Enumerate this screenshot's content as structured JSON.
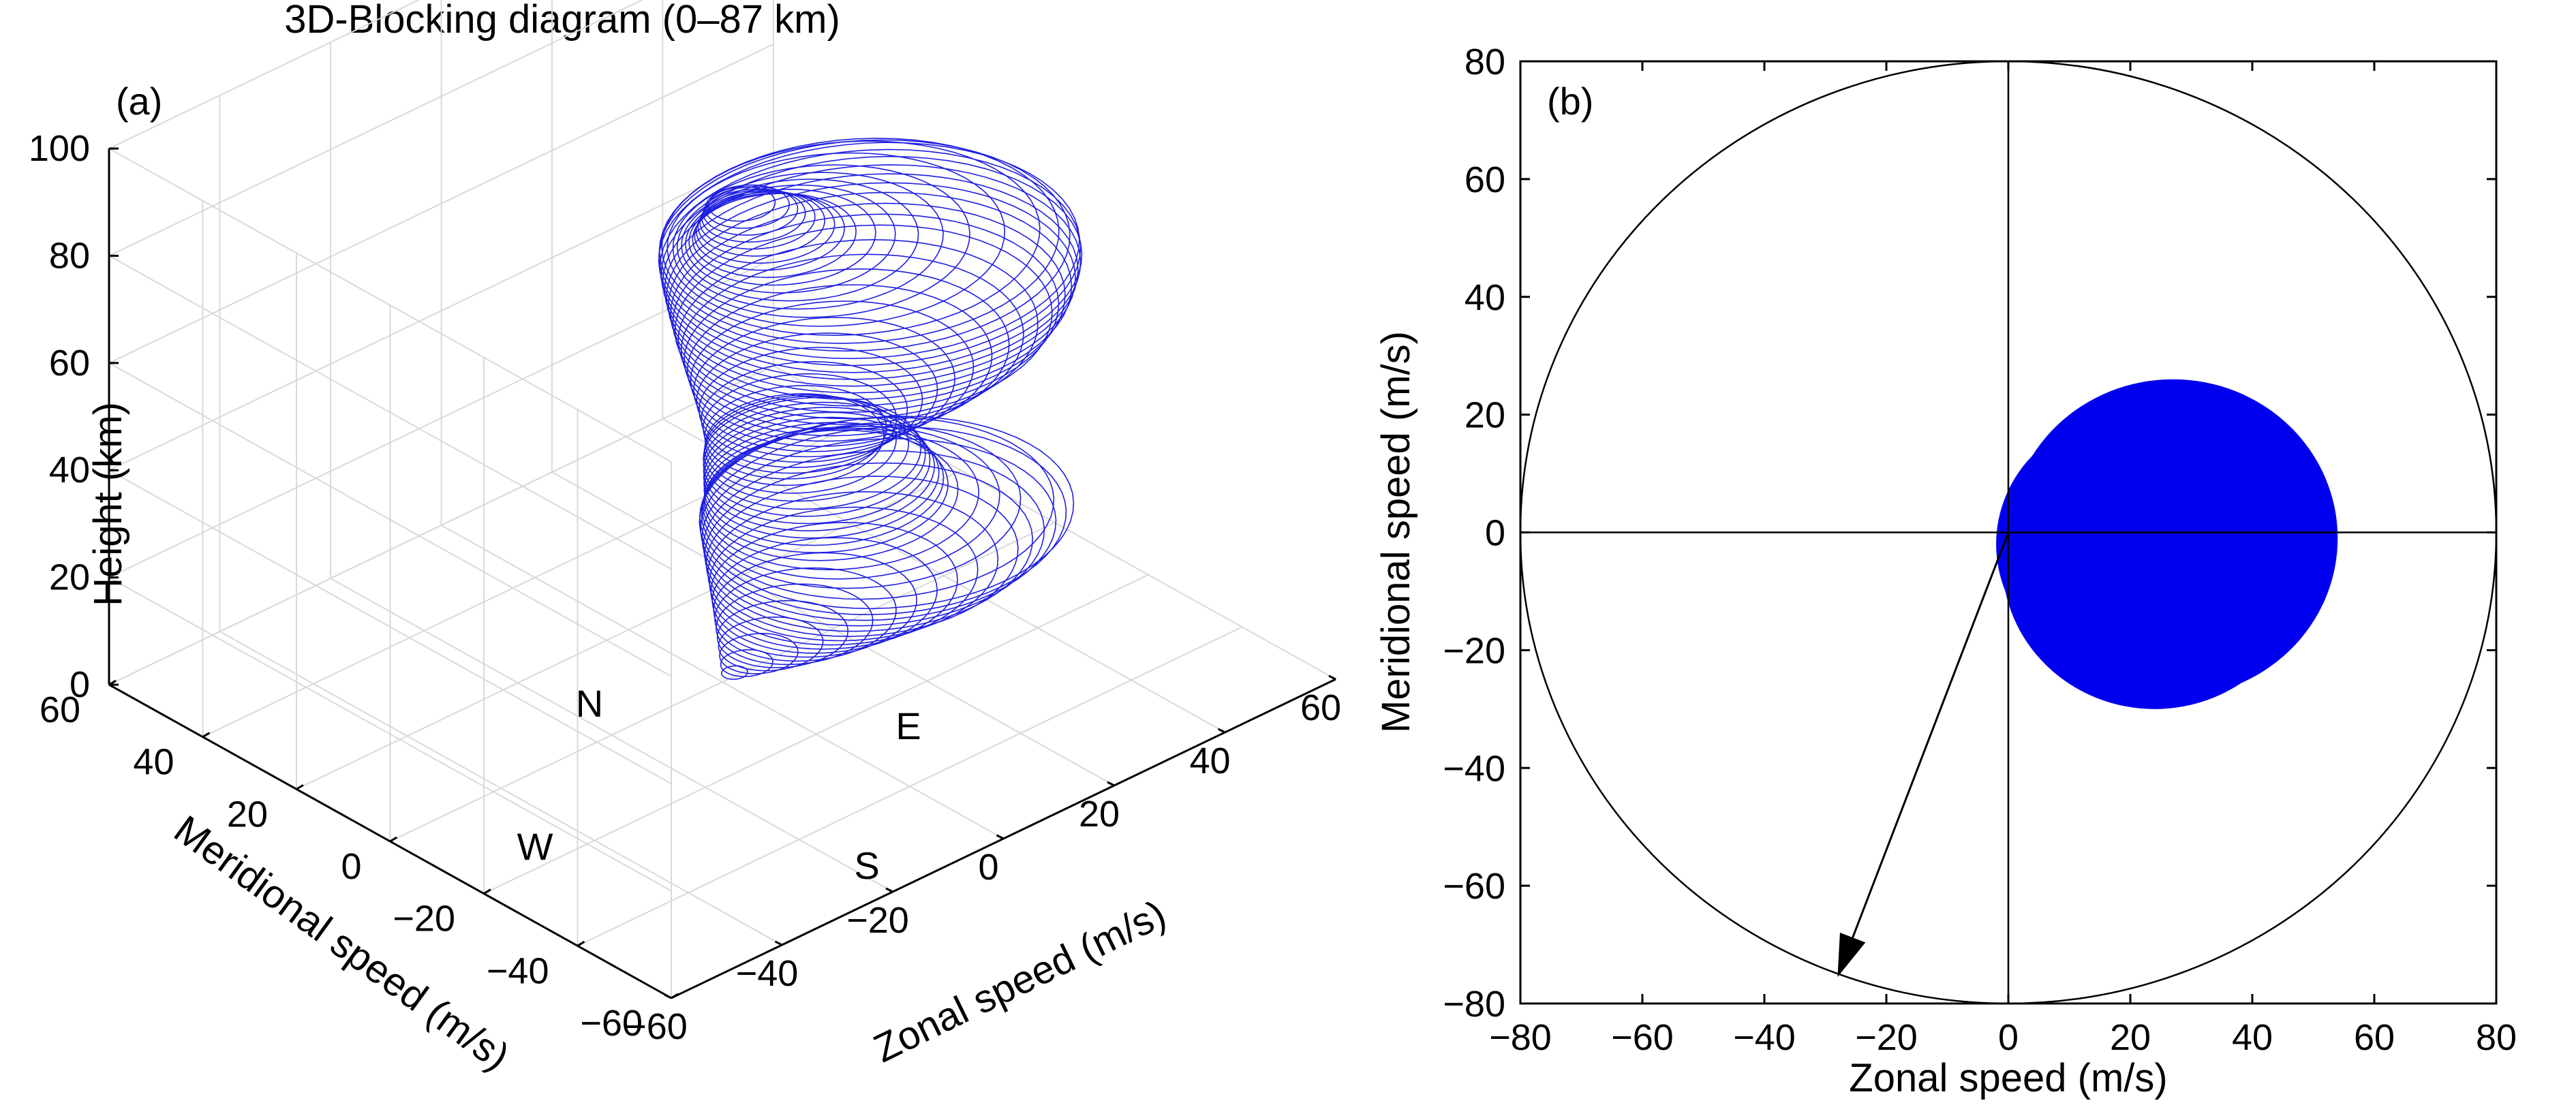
{
  "chart_data": [
    {
      "panel": "(a)",
      "type": "line",
      "title": "3D-Blocking diagram (0–87 km)",
      "xlabel": "Zonal speed (m/s)",
      "ylabel": "Meridional speed (m/s)",
      "zlabel": "Height (km)",
      "xlim": [
        -60,
        60
      ],
      "ylim": [
        -60,
        60
      ],
      "zlim": [
        0,
        100
      ],
      "xticks": [
        "−60",
        "−40",
        "−20",
        "0",
        "20",
        "40",
        "60"
      ],
      "yticks": [
        "−60",
        "−40",
        "−20",
        "0",
        "20",
        "40",
        "60"
      ],
      "zticks": [
        "0",
        "20",
        "40",
        "60",
        "80",
        "100"
      ],
      "grid": true,
      "direction_labels": [
        "N",
        "E",
        "W",
        "S"
      ],
      "series_color": "#1f1fe0",
      "circles": {
        "description_levels_km": [
          0,
          87
        ],
        "profile": [
          {
            "z": 0,
            "r": 0
          },
          {
            "z": 4,
            "r": 6
          },
          {
            "z": 8,
            "r": 12
          },
          {
            "z": 12,
            "r": 17
          },
          {
            "z": 16,
            "r": 22
          },
          {
            "z": 20,
            "r": 25
          },
          {
            "z": 22,
            "r": 26
          },
          {
            "z": 24,
            "r": 22
          },
          {
            "z": 28,
            "r": 17
          },
          {
            "z": 32,
            "r": 16
          },
          {
            "z": 36,
            "r": 15
          },
          {
            "z": 40,
            "r": 12
          },
          {
            "z": 43,
            "r": 14
          },
          {
            "z": 46,
            "r": 17
          },
          {
            "z": 50,
            "r": 22
          },
          {
            "z": 54,
            "r": 26
          },
          {
            "z": 58,
            "r": 28
          },
          {
            "z": 62,
            "r": 29
          },
          {
            "z": 65,
            "r": 29
          },
          {
            "z": 68,
            "r": 27
          },
          {
            "z": 71,
            "r": 20
          },
          {
            "z": 74,
            "r": 15
          },
          {
            "z": 77,
            "r": 11
          },
          {
            "z": 80,
            "r": 9
          },
          {
            "z": 83,
            "r": 7
          },
          {
            "z": 85,
            "r": 6
          },
          {
            "z": 87,
            "r": 4
          }
        ]
      }
    },
    {
      "panel": "(b)",
      "type": "scatter",
      "xlabel": "Zonal speed (m/s)",
      "ylabel": "Meridional speed (m/s)",
      "xlim": [
        -80,
        80
      ],
      "ylim": [
        -80,
        80
      ],
      "xticks": [
        "−80",
        "−60",
        "−40",
        "−20",
        "0",
        "20",
        "40",
        "60",
        "80"
      ],
      "yticks": [
        "−80",
        "−60",
        "−40",
        "−20",
        "0",
        "20",
        "40",
        "60",
        "80"
      ],
      "grid": false,
      "reference_circle_radius": 80,
      "filled_region_color": "#0000ee",
      "filled_circles": [
        {
          "cx": 27,
          "cy": -1,
          "r": 27
        },
        {
          "cx": 24,
          "cy": -5,
          "r": 25
        },
        {
          "cx": 20,
          "cy": -2,
          "r": 22
        },
        {
          "cx": 14,
          "cy": 2,
          "r": 14
        },
        {
          "cx": 6,
          "cy": 2,
          "r": 6
        }
      ],
      "arrow": {
        "from": [
          0,
          0
        ],
        "to": [
          -28,
          -75.5
        ]
      }
    }
  ]
}
